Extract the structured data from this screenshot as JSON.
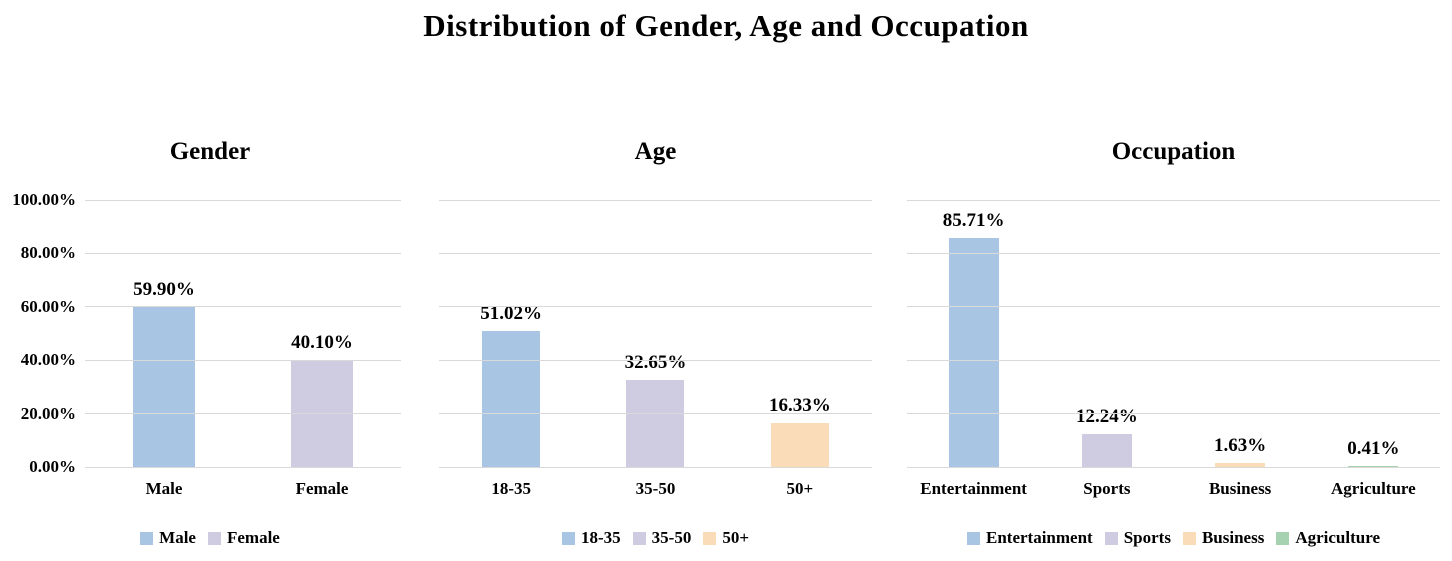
{
  "page": {
    "title": "Distribution of Gender, Age and Occupation"
  },
  "colors": {
    "blue": "#a8c6e4",
    "lavender": "#cfcbe0",
    "peach": "#fbdcb9",
    "green": "#a6d2b2",
    "gridline": "#d9d9d9",
    "text": "#000000"
  },
  "y_axis": {
    "tick_labels": [
      "100.00%",
      "80.00%",
      "60.00%",
      "40.00%",
      "20.00%",
      "0.00%"
    ],
    "min": 0,
    "max": 100,
    "step": 20,
    "shown_on_first_panel_only": true
  },
  "chart_data": [
    {
      "type": "bar",
      "title": "Gender",
      "categories": [
        "Male",
        "Female"
      ],
      "values": [
        59.9,
        40.1
      ],
      "data_labels": [
        "59.90%",
        "40.10%"
      ],
      "bar_colors": [
        "#a8c6e4",
        "#cfcbe0"
      ],
      "legend": [
        {
          "label": "Male",
          "color": "#a8c6e4"
        },
        {
          "label": "Female",
          "color": "#cfcbe0"
        }
      ],
      "ylim": [
        0,
        100
      ],
      "grid": true,
      "legend_position": "bottom"
    },
    {
      "type": "bar",
      "title": "Age",
      "categories": [
        "18-35",
        "35-50",
        "50+"
      ],
      "values": [
        51.02,
        32.65,
        16.33
      ],
      "data_labels": [
        "51.02%",
        "32.65%",
        "16.33%"
      ],
      "bar_colors": [
        "#a8c6e4",
        "#cfcbe0",
        "#fbdcb9"
      ],
      "legend": [
        {
          "label": "18-35",
          "color": "#a8c6e4"
        },
        {
          "label": "35-50",
          "color": "#cfcbe0"
        },
        {
          "label": "50+",
          "color": "#fbdcb9"
        }
      ],
      "ylim": [
        0,
        100
      ],
      "grid": true,
      "legend_position": "bottom"
    },
    {
      "type": "bar",
      "title": "Occupation",
      "categories": [
        "Entertainment",
        "Sports",
        "Business",
        "Agriculture"
      ],
      "values": [
        85.71,
        12.24,
        1.63,
        0.41
      ],
      "data_labels": [
        "85.71%",
        "12.24%",
        "1.63%",
        "0.41%"
      ],
      "bar_colors": [
        "#a8c6e4",
        "#cfcbe0",
        "#fbdcb9",
        "#a6d2b2"
      ],
      "legend": [
        {
          "label": "Entertainment",
          "color": "#a8c6e4"
        },
        {
          "label": "Sports",
          "color": "#cfcbe0"
        },
        {
          "label": "Business",
          "color": "#fbdcb9"
        },
        {
          "label": "Agriculture",
          "color": "#a6d2b2"
        }
      ],
      "ylim": [
        0,
        100
      ],
      "grid": true,
      "legend_position": "bottom"
    }
  ]
}
